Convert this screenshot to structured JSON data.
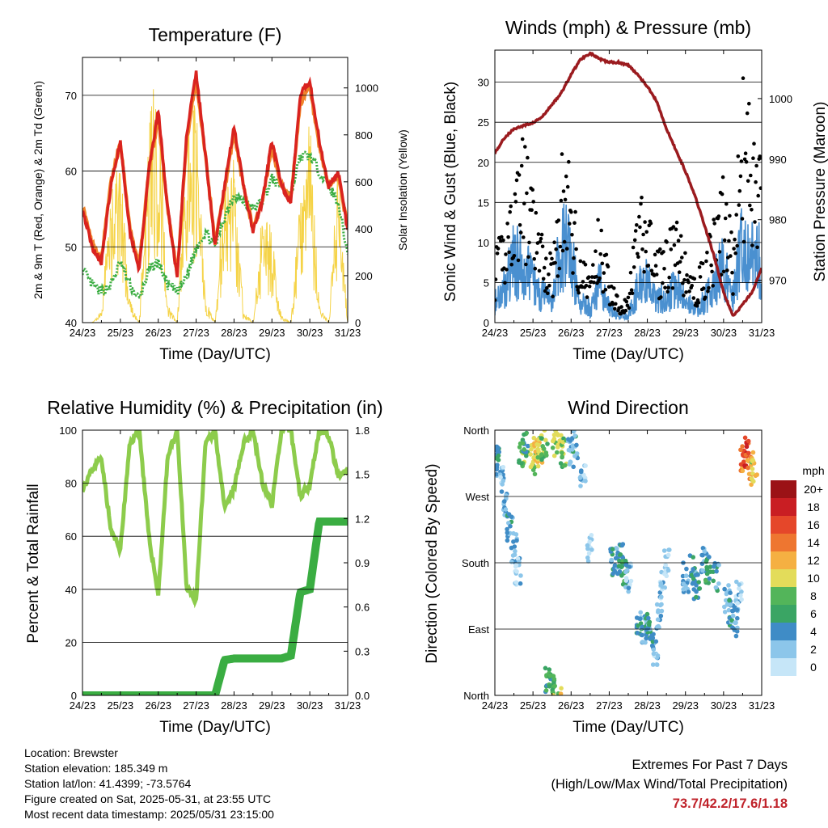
{
  "x_ticks": [
    "24/23",
    "25/23",
    "26/23",
    "27/23",
    "28/23",
    "29/23",
    "30/23",
    "31/23"
  ],
  "x_axis_label": "Time (Day/UTC)",
  "colors": {
    "temp2m": "#d9231f",
    "temp9m": "#f0832a",
    "dewpoint": "#3aad42",
    "solar": "#f5d347",
    "wind": "#4a90d0",
    "gust": "#000000",
    "pressure": "#9b1b1f",
    "rh": "#8dcc4c",
    "rain": "#3aad42",
    "extremes": "#c0232b"
  },
  "panels": {
    "temperature": {
      "title": "Temperature (F)",
      "ylabel": "2m & 9m T (Red, Orange) & 2m Td (Green)",
      "y2label": "Solar Insolation (Yellow)",
      "ytick_labels": [
        "40",
        "50",
        "60",
        "70"
      ],
      "y2tick_labels": [
        "0",
        "200",
        "400",
        "600",
        "800",
        "1000"
      ]
    },
    "winds": {
      "title": "Winds (mph) & Pressure (mb)",
      "ylabel": "Sonic Wind & Gust (Blue, Black)",
      "y2label": "Station Pressure (Maroon)",
      "ytick_labels": [
        "0",
        "5",
        "10",
        "15",
        "20",
        "25",
        "30"
      ],
      "y2tick_labels": [
        "970",
        "980",
        "990",
        "1000"
      ]
    },
    "humidity": {
      "title": "Relative Humidity (%) & Precipitation (in)",
      "ylabel": "Percent & Total Rainfall",
      "ytick_labels": [
        "0",
        "20",
        "40",
        "60",
        "80",
        "100"
      ],
      "y2tick_labels": [
        "0.0",
        "0.3",
        "0.6",
        "0.9",
        "1.2",
        "1.5",
        "1.8"
      ]
    },
    "direction": {
      "title": "Wind Direction",
      "ylabel": "Direction (Colored By Speed)",
      "ytick_labels": [
        "North",
        "East",
        "South",
        "West",
        "North"
      ],
      "colorbar_title": "mph",
      "colorbar_labels": [
        "0",
        "2",
        "4",
        "6",
        "8",
        "10",
        "12",
        "14",
        "16",
        "18",
        "20+"
      ],
      "colorbar_colors": [
        "#c6e6f8",
        "#8cc6ea",
        "#3f8cc6",
        "#3aa564",
        "#53b55a",
        "#e3dc5a",
        "#f5b042",
        "#ee7630",
        "#e5472a",
        "#c91e23",
        "#9b1216"
      ]
    }
  },
  "info": {
    "location": "Location: Brewster",
    "elevation": "Station elevation: 185.349 m",
    "latlon": "Station lat/lon: 41.4399; -73.5764",
    "created": "Figure created on Sat, 2025-05-31, at 23:55 UTC",
    "recent": "Most recent data timestamp: 2025/05/31 23:15:00"
  },
  "extremes": {
    "line1": "Extremes For Past 7 Days",
    "line2": "(High/Low/Max Wind/Total Precipitation)",
    "values": "73.7/42.2/17.6/1.18"
  },
  "chart_data": [
    {
      "type": "line",
      "title": "Temperature (F)",
      "xlabel": "Time (Day/UTC)",
      "ylabel": "2m & 9m T (Red, Orange) & 2m Td (Green)",
      "y2label": "Solar Insolation (Yellow)",
      "ylim": [
        40,
        75
      ],
      "y2lim": [
        0,
        1130
      ],
      "x": [
        0,
        0.25,
        0.5,
        0.75,
        1,
        1.25,
        1.5,
        1.75,
        2,
        2.25,
        2.5,
        2.75,
        3,
        3.25,
        3.5,
        3.75,
        4,
        4.25,
        4.5,
        4.75,
        5,
        5.25,
        5.5,
        5.75,
        6,
        6.25,
        6.5,
        6.75,
        7
      ],
      "series": [
        {
          "values": [
            55,
            50,
            48,
            58,
            64,
            52,
            47,
            60,
            68,
            55,
            46,
            65,
            73,
            62,
            50,
            58,
            66,
            58,
            52,
            56,
            64,
            58,
            56,
            70,
            72,
            64,
            58,
            60,
            52
          ]
        },
        {
          "values": [
            55.5,
            50.5,
            48.5,
            58.5,
            64,
            52.5,
            47.5,
            60,
            67,
            55,
            46.5,
            64,
            72,
            62,
            50.5,
            57.5,
            65,
            58,
            52.5,
            56,
            63,
            58,
            56.5,
            69,
            71,
            63,
            58,
            59.5,
            52.5
          ]
        },
        {
          "values": [
            47,
            45,
            44,
            45,
            48,
            45,
            43,
            47,
            48,
            45,
            44,
            46,
            50,
            52,
            50,
            54,
            57,
            56,
            55,
            56,
            59,
            58,
            57,
            62,
            62,
            60,
            58,
            56,
            49
          ]
        },
        {
          "values": [
            0,
            0,
            50,
            600,
            700,
            100,
            0,
            900,
            1100,
            80,
            0,
            850,
            1000,
            100,
            0,
            700,
            750,
            50,
            0,
            500,
            400,
            30,
            0,
            600,
            900,
            80,
            0,
            700,
            0
          ]
        }
      ]
    },
    {
      "type": "line",
      "title": "Winds (mph) & Pressure (mb)",
      "xlabel": "Time (Day/UTC)",
      "ylabel": "Sonic Wind & Gust (Blue, Black)",
      "y2label": "Station Pressure (Maroon)",
      "ylim": [
        0,
        34
      ],
      "y2lim": [
        963,
        1008
      ],
      "x": [
        0,
        0.25,
        0.5,
        0.75,
        1,
        1.25,
        1.5,
        1.75,
        2,
        2.25,
        2.5,
        2.75,
        3,
        3.25,
        3.5,
        3.75,
        4,
        4.25,
        4.5,
        4.75,
        5,
        5.25,
        5.5,
        5.75,
        6,
        6.25,
        6.5,
        6.75,
        7
      ],
      "series": [
        {
          "values": [
            3,
            5,
            9,
            8,
            6,
            4,
            3,
            12,
            9,
            3,
            2,
            6,
            2,
            1,
            1,
            5,
            6,
            3,
            4,
            5,
            3,
            2,
            3,
            6,
            8,
            4,
            12,
            10,
            9
          ]
        },
        {
          "values": [
            8,
            12,
            18,
            22,
            15,
            10,
            8,
            20,
            18,
            8,
            6,
            13,
            6,
            3,
            3,
            14,
            15,
            8,
            10,
            12,
            8,
            5,
            8,
            12,
            17,
            10,
            28,
            24,
            20
          ]
        },
        {
          "values": [
            991,
            993.5,
            995,
            995.5,
            996,
            997,
            999,
            1001,
            1004,
            1006.5,
            1007.5,
            1006.5,
            1006,
            1006,
            1005.5,
            1004,
            1002,
            999.5,
            995,
            991.5,
            988,
            984,
            979,
            974,
            968,
            964,
            966,
            968,
            972
          ]
        }
      ]
    },
    {
      "type": "line",
      "title": "Relative Humidity (%) & Precipitation (in)",
      "xlabel": "Time (Day/UTC)",
      "ylabel": "Percent & Total Rainfall",
      "ylim": [
        0,
        100
      ],
      "y2lim": [
        0,
        1.8
      ],
      "x": [
        0,
        0.25,
        0.5,
        0.75,
        1,
        1.25,
        1.5,
        1.75,
        2,
        2.25,
        2.5,
        2.75,
        3,
        3.25,
        3.5,
        3.75,
        4,
        4.25,
        4.5,
        4.75,
        5,
        5.25,
        5.5,
        5.75,
        6,
        6.25,
        6.5,
        6.75,
        7
      ],
      "series": [
        {
          "values": [
            78,
            85,
            90,
            62,
            55,
            95,
            100,
            60,
            38,
            90,
            100,
            40,
            36,
            95,
            100,
            70,
            78,
            95,
            100,
            80,
            72,
            100,
            100,
            75,
            80,
            100,
            98,
            82,
            85
          ]
        },
        {
          "values": [
            0,
            0,
            0,
            0,
            0,
            0,
            0,
            0,
            0,
            0,
            0,
            0,
            0,
            0,
            0,
            0.24,
            0.25,
            0.25,
            0.25,
            0.25,
            0.25,
            0.25,
            0.27,
            0.7,
            0.72,
            1.18,
            1.18,
            1.18,
            1.18
          ]
        }
      ]
    },
    {
      "type": "scatter",
      "title": "Wind Direction",
      "xlabel": "Time (Day/UTC)",
      "ylabel": "Direction (Colored By Speed)",
      "ylim": [
        0,
        360
      ],
      "colorbar": {
        "label": "mph",
        "range": [
          0,
          20
        ]
      },
      "x": [
        0,
        0.1,
        0.2,
        0.3,
        0.4,
        0.5,
        0.6,
        0.7,
        0.8,
        1.0,
        1.1,
        1.2,
        1.3,
        1.4,
        1.5,
        1.6,
        1.7,
        1.8,
        2.0,
        2.1,
        2.3,
        2.5,
        3.1,
        3.2,
        3.3,
        3.4,
        3.5,
        3.8,
        3.9,
        4.0,
        4.1,
        4.2,
        4.3,
        4.4,
        4.5,
        5.0,
        5.2,
        5.3,
        5.5,
        5.6,
        5.8,
        6.1,
        6.2,
        6.3,
        6.4,
        6.5,
        6.6,
        6.7,
        6.8
      ],
      "series": [
        {
          "name": "direction",
          "values": [
            315,
            320,
            290,
            260,
            230,
            200,
            170,
            330,
            340,
            320,
            330,
            335,
            340,
            20,
            10,
            345,
            350,
            330,
            330,
            340,
            300,
            200,
            180,
            185,
            190,
            170,
            160,
            100,
            90,
            95,
            80,
            60,
            110,
            150,
            180,
            160,
            170,
            150,
            180,
            170,
            160,
            130,
            110,
            100,
            140,
            320,
            330,
            310,
            300
          ]
        },
        {
          "name": "speed",
          "values": [
            3,
            5,
            2,
            3,
            4,
            3,
            2,
            8,
            6,
            9,
            11,
            10,
            8,
            6,
            7,
            9,
            10,
            8,
            3,
            4,
            2,
            1,
            4,
            3,
            5,
            6,
            2,
            4,
            3,
            5,
            4,
            2,
            3,
            2,
            1,
            3,
            4,
            5,
            3,
            6,
            4,
            3,
            4,
            3,
            2,
            14,
            16,
            13,
            10
          ]
        }
      ]
    }
  ]
}
